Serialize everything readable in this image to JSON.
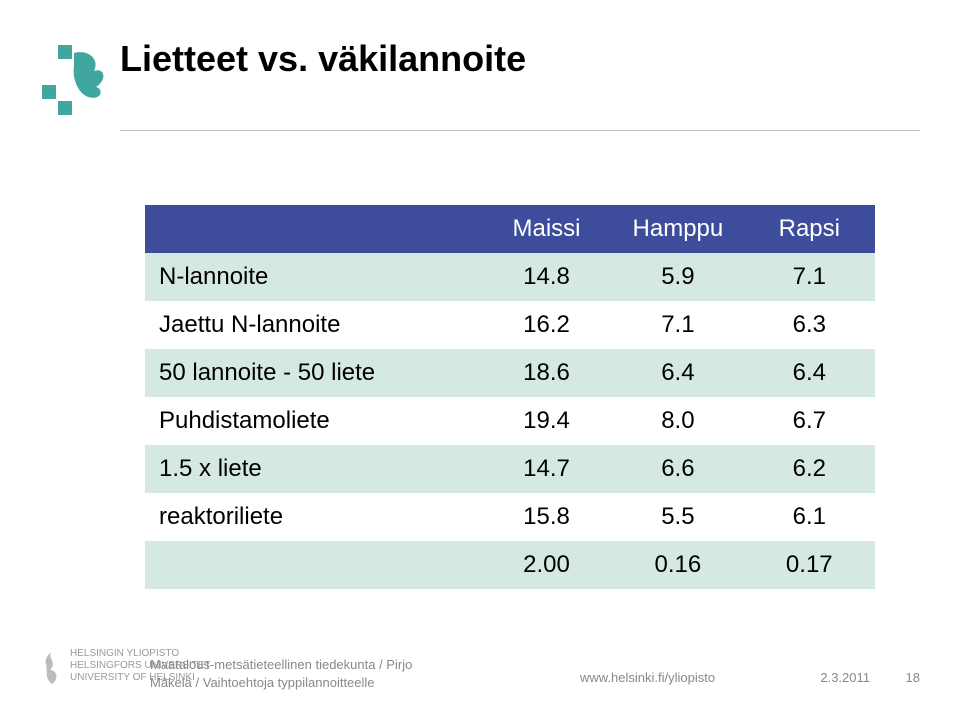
{
  "title": "Lietteet vs. väkilannoite",
  "logo": {
    "square_color": "#3fa79e",
    "flame_color": "#3fa79e"
  },
  "table": {
    "header_bg": "#3d4d9c",
    "header_fg": "#ffffff",
    "row_even_bg": "#d5e8e4",
    "row_odd_bg": "#ffffff",
    "columns": [
      "",
      "Maissi",
      "Hamppu",
      "Rapsi"
    ],
    "rows": [
      [
        "N-lannoite",
        "14.8",
        "5.9",
        "7.1"
      ],
      [
        "Jaettu N-lannoite",
        "16.2",
        "7.1",
        "6.3"
      ],
      [
        "50 lannoite - 50 liete",
        "18.6",
        "6.4",
        "6.4"
      ],
      [
        "Puhdistamoliete",
        "19.4",
        "8.0",
        "6.7"
      ],
      [
        "1.5 x liete",
        "14.7",
        "6.6",
        "6.2"
      ],
      [
        "reaktoriliete",
        "15.8",
        "5.5",
        "6.1"
      ],
      [
        "",
        "2.00",
        "0.16",
        "0.17"
      ]
    ],
    "col_widths": [
      "46%",
      "18%",
      "18%",
      "18%"
    ]
  },
  "footer": {
    "dept_line1": "Maatalous-metsätieteellinen tiedekunta / Pirjo",
    "dept_line2": "Mäkelä / Vaihtoehtoja typpilannoitteelle",
    "url": "www.helsinki.fi/yliopisto",
    "date": "2.3.2011",
    "page": "18",
    "uni1": "HELSINGIN YLIOPISTO",
    "uni2": "HELSINGFORS UNIVERSITET",
    "uni3": "UNIVERSITY OF HELSINKI"
  }
}
